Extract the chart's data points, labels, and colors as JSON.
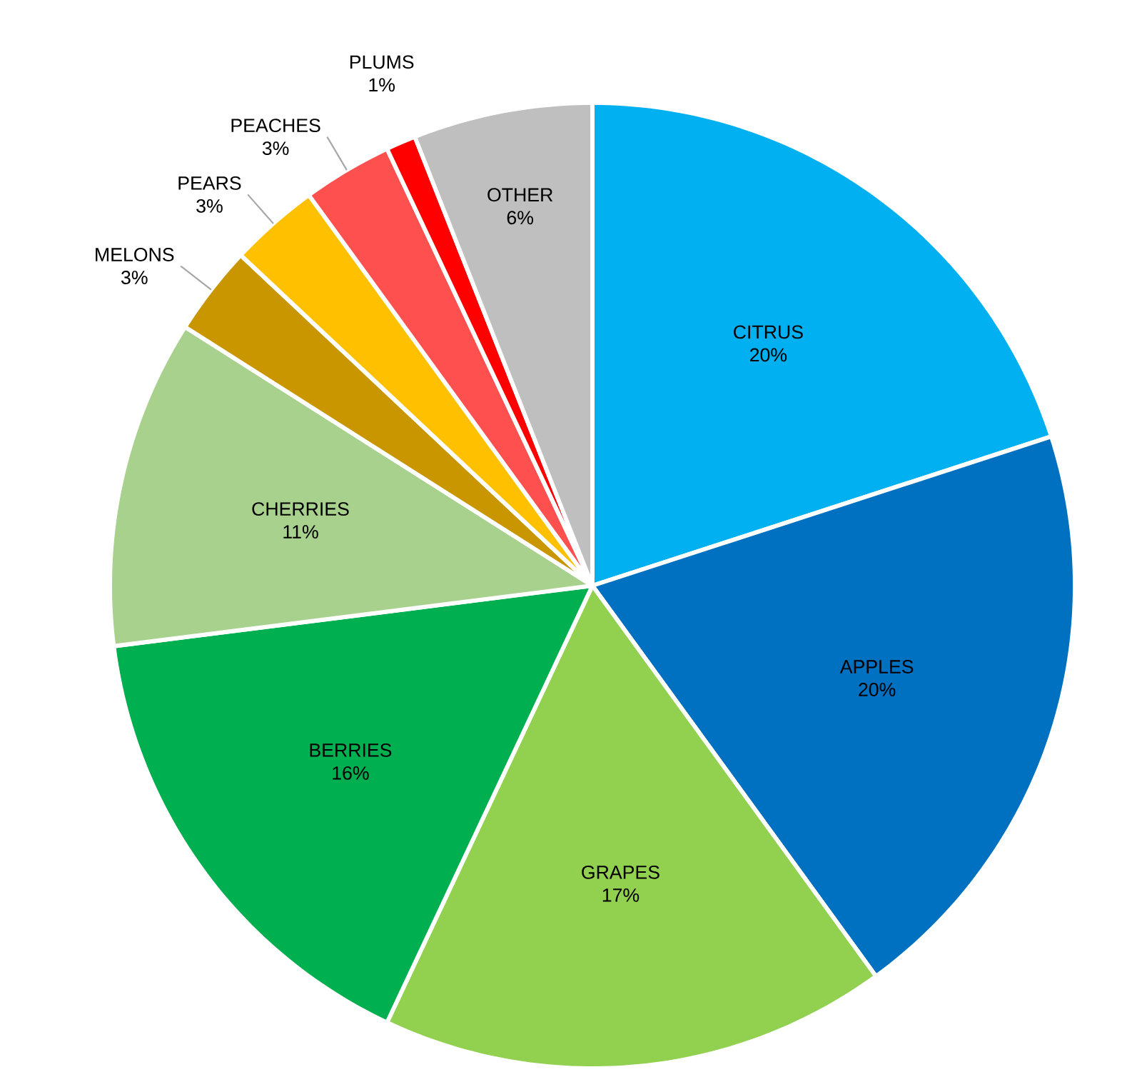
{
  "chart_data": {
    "type": "pie",
    "categories": [
      "CITRUS",
      "APPLES",
      "GRAPES",
      "BERRIES",
      "CHERRIES",
      "MELONS",
      "PEARS",
      "PEACHES",
      "PLUMS",
      "OTHER"
    ],
    "values": [
      20,
      20,
      17,
      16,
      11,
      3,
      3,
      3,
      1,
      6
    ],
    "value_labels": [
      "20%",
      "20%",
      "17%",
      "16%",
      "11%",
      "3%",
      "3%",
      "3%",
      "1%",
      "6%"
    ],
    "colors": [
      "#00b0f0",
      "#0070c0",
      "#92d050",
      "#00b050",
      "#a9d18e",
      "#c99600",
      "#ffc000",
      "#ff5050",
      "#ff0000",
      "#bfbfbf"
    ]
  }
}
